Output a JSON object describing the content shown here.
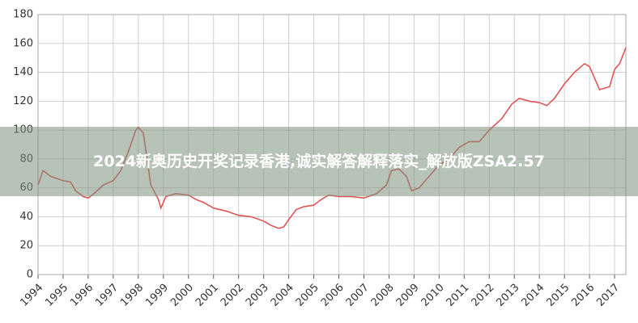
{
  "chart_data": {
    "type": "line",
    "title": "2024新奥历史开奖记录香港,诚实解答解释落实_解放版ZSA2.57",
    "x": [
      1994.0,
      1994.2,
      1994.5,
      1995.0,
      1995.3,
      1995.5,
      1995.8,
      1996.0,
      1996.3,
      1996.6,
      1997.0,
      1997.3,
      1997.6,
      1997.9,
      1998.0,
      1998.2,
      1998.5,
      1998.8,
      1998.9,
      1999.1,
      1999.5,
      2000.0,
      2000.3,
      2000.6,
      2001.0,
      2001.5,
      2002.0,
      2002.5,
      2003.0,
      2003.3,
      2003.6,
      2003.8,
      2004.0,
      2004.3,
      2004.6,
      2005.0,
      2005.3,
      2005.6,
      2006.0,
      2006.5,
      2007.0,
      2007.5,
      2007.9,
      2008.1,
      2008.4,
      2008.7,
      2008.9,
      2009.2,
      2009.6,
      2010.0,
      2010.4,
      2010.8,
      2011.2,
      2011.6,
      2012.0,
      2012.5,
      2012.9,
      2013.2,
      2013.6,
      2014.0,
      2014.3,
      2014.6,
      2015.0,
      2015.4,
      2015.8,
      2016.0,
      2016.2,
      2016.4,
      2016.8,
      2017.0,
      2017.2,
      2017.45
    ],
    "values": [
      62,
      72,
      68,
      65,
      64,
      58,
      54,
      53,
      57,
      62,
      65,
      72,
      85,
      100,
      102,
      98,
      62,
      52,
      46,
      54,
      56,
      55,
      52,
      50,
      46,
      44,
      41,
      40,
      37,
      34,
      32,
      33,
      38,
      45,
      47,
      48,
      52,
      55,
      54,
      54,
      53,
      56,
      62,
      72,
      73,
      68,
      58,
      60,
      68,
      76,
      80,
      88,
      92,
      92,
      100,
      108,
      118,
      122,
      120,
      119,
      117,
      122,
      132,
      140,
      146,
      144,
      136,
      128,
      130,
      142,
      146,
      157
    ],
    "color": "#e05555",
    "xlim": [
      1994,
      2017.45
    ],
    "xticks": [
      1994,
      1995,
      1996,
      1997,
      1998,
      1999,
      2000,
      2001,
      2002,
      2003,
      2004,
      2005,
      2006,
      2007,
      2008,
      2009,
      2010,
      2011,
      2012,
      2013,
      2014,
      2015,
      2016,
      2017
    ],
    "ylim": [
      0,
      180
    ],
    "yticks": [
      0,
      20,
      40,
      60,
      80,
      100,
      120,
      140,
      160,
      180
    ],
    "grid": true
  }
}
